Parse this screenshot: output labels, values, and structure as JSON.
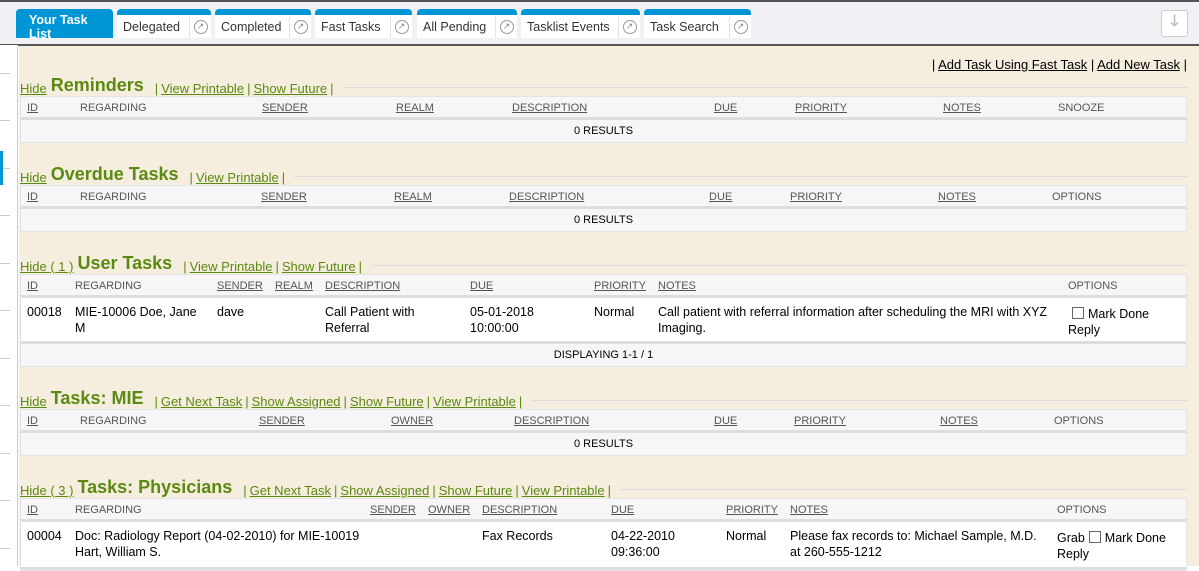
{
  "tabs": [
    {
      "label": "Your Task List",
      "active": true
    },
    {
      "label": "Delegated"
    },
    {
      "label": "Completed"
    },
    {
      "label": "Fast Tasks"
    },
    {
      "label": "All Pending"
    },
    {
      "label": "Tasklist Events"
    },
    {
      "label": "Task Search"
    }
  ],
  "tab_ext_icon": "external-link-icon",
  "download_icon": "arrow-down-icon",
  "top_links": {
    "fast_task": "Add Task Using Fast Task",
    "new_task": "Add New Task",
    "sep": "|"
  },
  "sections": [
    {
      "hide": "Hide",
      "title": "Reminders",
      "links": [
        "View Printable",
        "Show Future"
      ],
      "headers": [
        "ID",
        "REGARDING",
        "SENDER",
        "REALM",
        "DESCRIPTION",
        "DUE",
        "PRIORITY",
        "NOTES",
        "SNOOZE"
      ],
      "footer": "0 RESULTS"
    },
    {
      "hide": "Hide",
      "title": "Overdue Tasks",
      "links": [
        "View Printable"
      ],
      "headers": [
        "ID",
        "REGARDING",
        "SENDER",
        "REALM",
        "DESCRIPTION",
        "DUE",
        "PRIORITY",
        "NOTES",
        "OPTIONS"
      ],
      "footer": "0 RESULTS"
    },
    {
      "hide": "Hide ( 1 )",
      "title": "User Tasks",
      "links": [
        "View Printable",
        "Show Future"
      ],
      "headers": [
        "ID",
        "REGARDING",
        "SENDER",
        "REALM",
        "DESCRIPTION",
        "DUE",
        "PRIORITY",
        "NOTES",
        "OPTIONS"
      ],
      "rows": [
        {
          "id": "00018",
          "regarding": "MIE-10006 Doe, Jane M",
          "sender": "dave",
          "realm": "",
          "description": "Call Patient with Referral",
          "due": "05-01-2018 10:00:00",
          "priority": "Normal",
          "notes": "Call patient with referral information after scheduling the MRI with XYZ Imaging.",
          "options": {
            "grab": "",
            "mark_done": "Mark Done",
            "reply": "Reply"
          }
        }
      ],
      "footer": "DISPLAYING 1-1 / 1"
    },
    {
      "hide": "Hide",
      "title": "Tasks: MIE",
      "links": [
        "Get Next Task",
        "Show Assigned",
        "Show Future",
        "View Printable"
      ],
      "headers": [
        "ID",
        "REGARDING",
        "SENDER",
        "OWNER",
        "DESCRIPTION",
        "DUE",
        "PRIORITY",
        "NOTES",
        "OPTIONS"
      ],
      "footer": "0 RESULTS"
    },
    {
      "hide": "Hide ( 3 )",
      "title": "Tasks: Physicians",
      "links": [
        "Get Next Task",
        "Show Assigned",
        "Show Future",
        "View Printable"
      ],
      "headers": [
        "ID",
        "REGARDING",
        "SENDER",
        "OWNER",
        "DESCRIPTION",
        "DUE",
        "PRIORITY",
        "NOTES",
        "OPTIONS"
      ],
      "rows": [
        {
          "id": "00004",
          "regarding": "Doc: Radiology Report (04-02-2010) for MIE-10019 Hart, William S.",
          "sender": "",
          "realm": "",
          "description": "Fax Records",
          "due": "04-22-2010 09:36:00",
          "priority": "Normal",
          "notes": "Please fax records to: Michael Sample, M.D. at 260-555-1212",
          "options": {
            "grab": "Grab",
            "mark_done": "Mark Done",
            "reply": "Reply"
          }
        }
      ]
    }
  ]
}
